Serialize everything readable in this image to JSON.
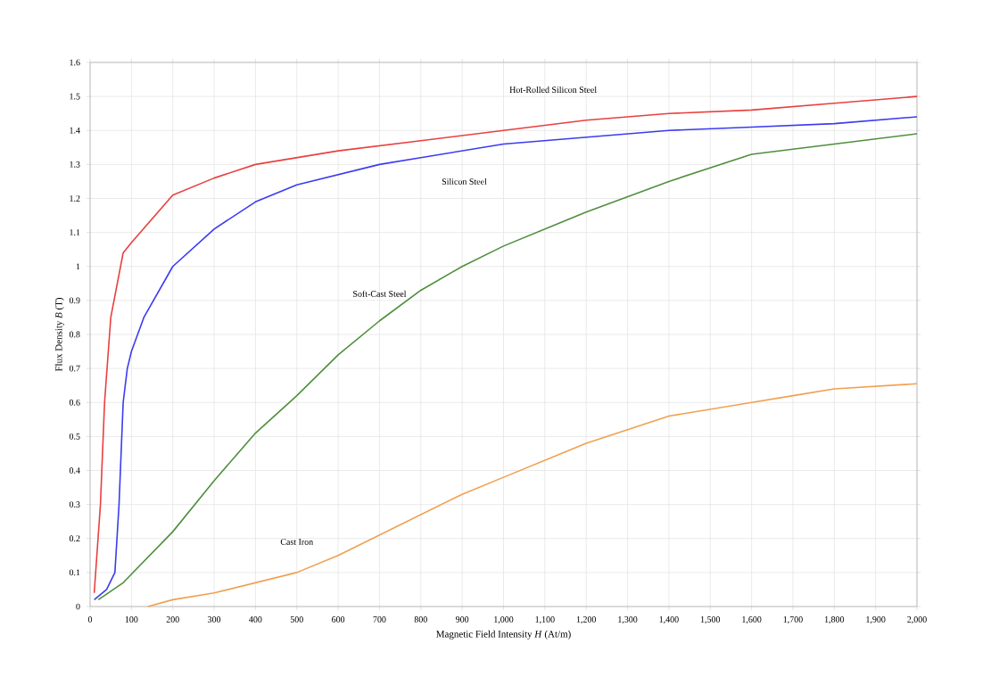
{
  "chart_data": {
    "type": "line",
    "xlabel": "Magnetic Field Intensity *H* (At/m)",
    "ylabel": "Flux Density *B* (T)",
    "xlim": [
      0,
      2000
    ],
    "ylim": [
      0,
      1.6
    ],
    "xticks": [
      0,
      100,
      200,
      300,
      400,
      500,
      600,
      700,
      800,
      900,
      {
        "value": 1000,
        "label": "1,000"
      },
      {
        "value": 1100,
        "label": "1,100"
      },
      {
        "value": 1200,
        "label": "1,200"
      },
      {
        "value": 1300,
        "label": "1,300"
      },
      {
        "value": 1400,
        "label": "1,400"
      },
      {
        "value": 1500,
        "label": "1,500"
      },
      {
        "value": 1600,
        "label": "1,600"
      },
      {
        "value": 1700,
        "label": "1,700"
      },
      {
        "value": 1800,
        "label": "1,800"
      },
      {
        "value": 1900,
        "label": "1,900"
      },
      {
        "value": 2000,
        "label": "2,000"
      }
    ],
    "yticks": [
      0,
      0.1,
      0.2,
      0.3,
      0.4,
      0.5,
      0.6,
      0.7,
      0.8,
      0.9,
      1,
      1.1,
      1.2,
      1.3,
      1.4,
      1.5,
      1.6
    ],
    "grid": true,
    "marker": "none",
    "line_style": "solid",
    "series": [
      {
        "name": "Hot-Rolled Silicon Steel",
        "color": "#e8403f",
        "x": [
          10,
          25,
          35,
          50,
          80,
          100,
          200,
          300,
          400,
          500,
          600,
          800,
          1000,
          1200,
          1400,
          1600,
          1800,
          2000
        ],
        "values": [
          0.04,
          0.3,
          0.6,
          0.85,
          1.04,
          1.07,
          1.21,
          1.26,
          1.3,
          1.32,
          1.34,
          1.37,
          1.4,
          1.43,
          1.45,
          1.46,
          1.48,
          1.5
        ]
      },
      {
        "name": "Silicon Steel",
        "color": "#3b3bf0",
        "x": [
          10,
          40,
          60,
          70,
          80,
          90,
          100,
          130,
          200,
          300,
          400,
          500,
          600,
          700,
          800,
          1000,
          1200,
          1400,
          1600,
          1800,
          2000
        ],
        "values": [
          0.02,
          0.05,
          0.1,
          0.3,
          0.6,
          0.7,
          0.75,
          0.85,
          1.0,
          1.11,
          1.19,
          1.24,
          1.27,
          1.3,
          1.32,
          1.36,
          1.38,
          1.4,
          1.41,
          1.42,
          1.44
        ]
      },
      {
        "name": "Soft-Cast Steel",
        "color": "#4e8f3e",
        "x": [
          20,
          80,
          200,
          300,
          400,
          500,
          600,
          700,
          800,
          900,
          1000,
          1200,
          1400,
          1500,
          1600,
          1800,
          2000
        ],
        "values": [
          0.02,
          0.07,
          0.22,
          0.37,
          0.51,
          0.62,
          0.74,
          0.84,
          0.93,
          1.0,
          1.06,
          1.16,
          1.25,
          1.29,
          1.33,
          1.36,
          1.39
        ]
      },
      {
        "name": "Cast Iron",
        "color": "#f0a050",
        "x": [
          140,
          200,
          300,
          400,
          500,
          600,
          700,
          800,
          900,
          1000,
          1100,
          1200,
          1300,
          1400,
          1500,
          1600,
          1700,
          1800,
          2000
        ],
        "values": [
          0,
          0.02,
          0.04,
          0.07,
          0.1,
          0.15,
          0.21,
          0.27,
          0.33,
          0.38,
          0.43,
          0.48,
          0.52,
          0.56,
          0.58,
          0.6,
          0.62,
          0.64,
          0.655
        ]
      }
    ]
  }
}
